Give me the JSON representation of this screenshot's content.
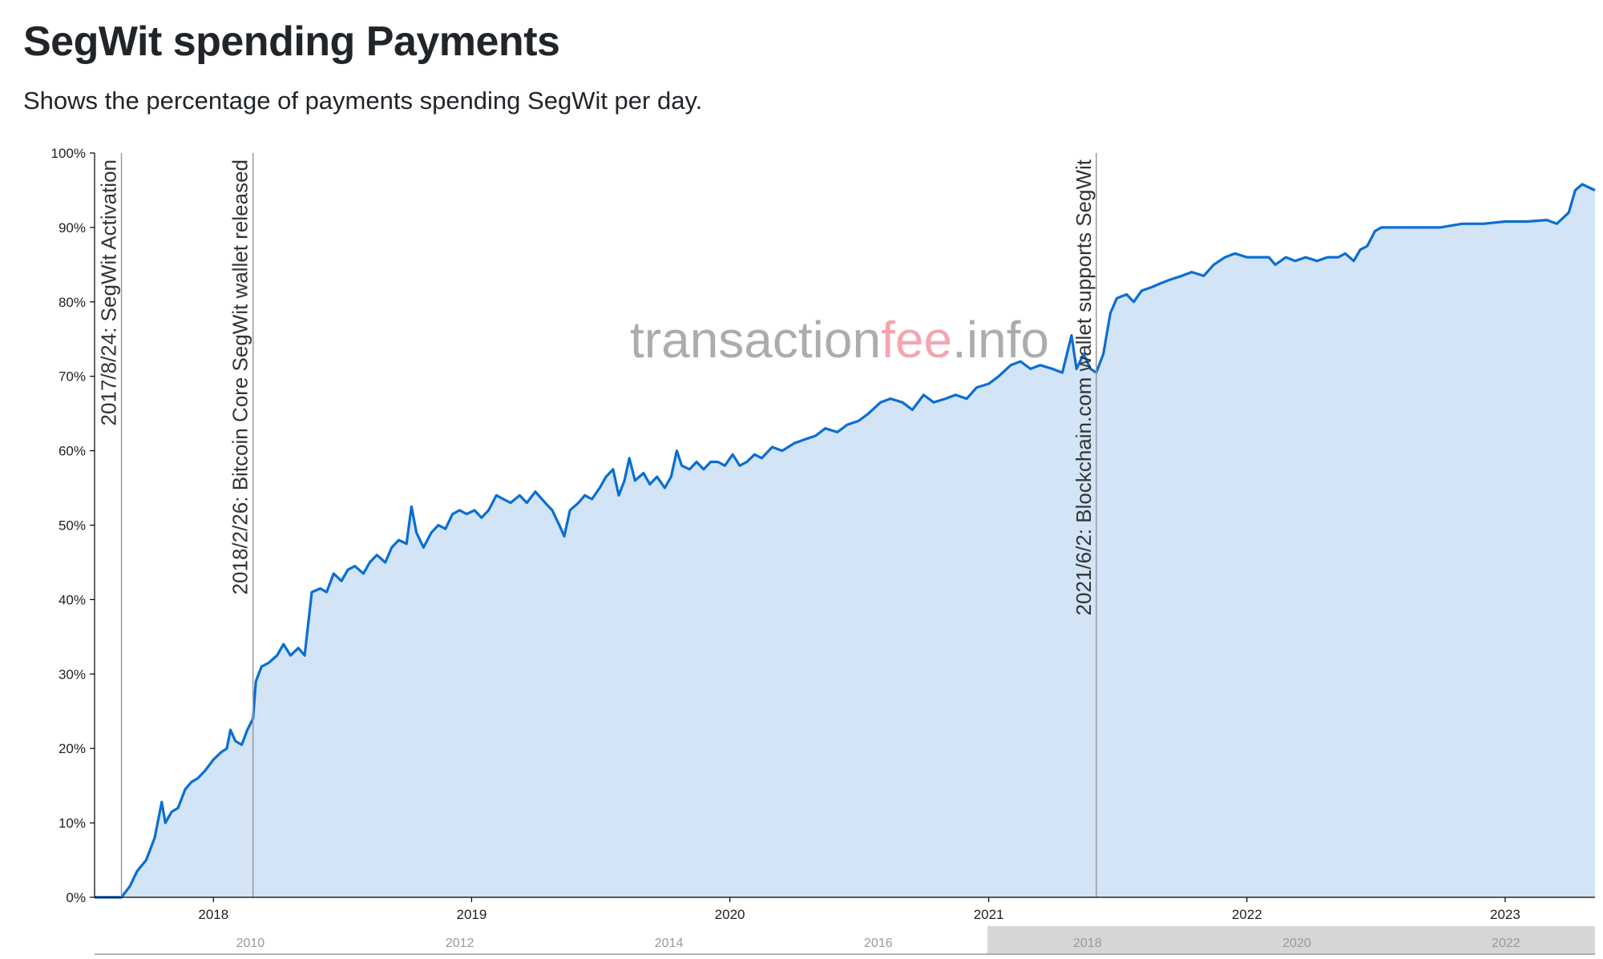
{
  "page": {
    "title": "SegWit spending Payments",
    "subtitle": "Shows the percentage of payments spending SegWit per day."
  },
  "watermark": {
    "part1": "transaction",
    "part2": "fee",
    "part3": ".info"
  },
  "colors": {
    "line": "#0a6ed1",
    "fill": "#d2e4f6",
    "annotation_line": "#9a9a9a",
    "navigator_window": "#d6d6d6"
  },
  "chart_data": {
    "type": "area",
    "title": "",
    "xlabel": "",
    "ylabel": "",
    "x_range": [
      "2017-07-17",
      "2023-05-08"
    ],
    "ylim": [
      0,
      100
    ],
    "y_ticks": [
      "0%",
      "10%",
      "20%",
      "30%",
      "40%",
      "50%",
      "60%",
      "70%",
      "80%",
      "90%",
      "100%"
    ],
    "x_ticks": [
      "2018",
      "2019",
      "2020",
      "2021",
      "2022",
      "2023"
    ],
    "grid": false,
    "legend": "none",
    "annotations": [
      {
        "date": "2017-08-24",
        "label": "2017/8/24: SegWit Activation"
      },
      {
        "date": "2018-02-26",
        "label": "2018/2/26: Bitcoin Core SegWit wallet released"
      },
      {
        "date": "2021-06-02",
        "label": "2021/6/2: Blockchain.com wallet supports SegWit"
      }
    ],
    "navigator": {
      "ticks": [
        "2010",
        "2012",
        "2014",
        "2016",
        "2018",
        "2020",
        "2022"
      ],
      "selected_range": [
        "2017-07-17",
        "2023-05-08"
      ]
    },
    "series": [
      {
        "values": [
          [
            "2017-07-17",
            0
          ],
          [
            "2017-08-24",
            0
          ],
          [
            "2017-09-05",
            1.5
          ],
          [
            "2017-09-15",
            3.5
          ],
          [
            "2017-09-28",
            5
          ],
          [
            "2017-10-10",
            8
          ],
          [
            "2017-10-20",
            12.8
          ],
          [
            "2017-10-25",
            10
          ],
          [
            "2017-11-03",
            11.5
          ],
          [
            "2017-11-12",
            12
          ],
          [
            "2017-11-22",
            14.5
          ],
          [
            "2017-12-01",
            15.5
          ],
          [
            "2017-12-10",
            16
          ],
          [
            "2017-12-20",
            17
          ],
          [
            "2018-01-01",
            18.5
          ],
          [
            "2018-01-12",
            19.5
          ],
          [
            "2018-01-20",
            20
          ],
          [
            "2018-01-25",
            22.5
          ],
          [
            "2018-02-01",
            21
          ],
          [
            "2018-02-10",
            20.5
          ],
          [
            "2018-02-18",
            22.5
          ],
          [
            "2018-02-26",
            24
          ],
          [
            "2018-03-02",
            29
          ],
          [
            "2018-03-10",
            31
          ],
          [
            "2018-03-20",
            31.5
          ],
          [
            "2018-04-01",
            32.5
          ],
          [
            "2018-04-10",
            34
          ],
          [
            "2018-04-20",
            32.5
          ],
          [
            "2018-05-01",
            33.5
          ],
          [
            "2018-05-10",
            32.5
          ],
          [
            "2018-05-20",
            41
          ],
          [
            "2018-06-01",
            41.5
          ],
          [
            "2018-06-10",
            41
          ],
          [
            "2018-06-20",
            43.5
          ],
          [
            "2018-07-01",
            42.5
          ],
          [
            "2018-07-10",
            44
          ],
          [
            "2018-07-20",
            44.5
          ],
          [
            "2018-08-01",
            43.5
          ],
          [
            "2018-08-10",
            45
          ],
          [
            "2018-08-20",
            46
          ],
          [
            "2018-09-01",
            45
          ],
          [
            "2018-09-10",
            47
          ],
          [
            "2018-09-20",
            48
          ],
          [
            "2018-10-01",
            47.5
          ],
          [
            "2018-10-08",
            52.5
          ],
          [
            "2018-10-15",
            49
          ],
          [
            "2018-10-25",
            47
          ],
          [
            "2018-11-05",
            49
          ],
          [
            "2018-11-15",
            50
          ],
          [
            "2018-11-25",
            49.5
          ],
          [
            "2018-12-05",
            51.5
          ],
          [
            "2018-12-15",
            52
          ],
          [
            "2018-12-25",
            51.5
          ],
          [
            "2019-01-05",
            52
          ],
          [
            "2019-01-15",
            51
          ],
          [
            "2019-01-25",
            52
          ],
          [
            "2019-02-05",
            54
          ],
          [
            "2019-02-15",
            53.5
          ],
          [
            "2019-02-25",
            53
          ],
          [
            "2019-03-10",
            54
          ],
          [
            "2019-03-20",
            53
          ],
          [
            "2019-04-01",
            54.5
          ],
          [
            "2019-04-15",
            53
          ],
          [
            "2019-04-25",
            52
          ],
          [
            "2019-05-05",
            50
          ],
          [
            "2019-05-12",
            48.5
          ],
          [
            "2019-05-20",
            52
          ],
          [
            "2019-06-01",
            53
          ],
          [
            "2019-06-10",
            54
          ],
          [
            "2019-06-20",
            53.5
          ],
          [
            "2019-07-01",
            55
          ],
          [
            "2019-07-10",
            56.5
          ],
          [
            "2019-07-20",
            57.5
          ],
          [
            "2019-07-28",
            54
          ],
          [
            "2019-08-05",
            56
          ],
          [
            "2019-08-12",
            59
          ],
          [
            "2019-08-20",
            56
          ],
          [
            "2019-09-01",
            57
          ],
          [
            "2019-09-10",
            55.5
          ],
          [
            "2019-09-20",
            56.5
          ],
          [
            "2019-10-01",
            55
          ],
          [
            "2019-10-10",
            56.5
          ],
          [
            "2019-10-18",
            60
          ],
          [
            "2019-10-25",
            58
          ],
          [
            "2019-11-05",
            57.5
          ],
          [
            "2019-11-15",
            58.5
          ],
          [
            "2019-11-25",
            57.5
          ],
          [
            "2019-12-05",
            58.5
          ],
          [
            "2019-12-15",
            58.5
          ],
          [
            "2019-12-25",
            58
          ],
          [
            "2020-01-05",
            59.5
          ],
          [
            "2020-01-15",
            58
          ],
          [
            "2020-01-25",
            58.5
          ],
          [
            "2020-02-05",
            59.5
          ],
          [
            "2020-02-15",
            59
          ],
          [
            "2020-03-01",
            60.5
          ],
          [
            "2020-03-15",
            60
          ],
          [
            "2020-04-01",
            61
          ],
          [
            "2020-04-15",
            61.5
          ],
          [
            "2020-05-01",
            62
          ],
          [
            "2020-05-15",
            63
          ],
          [
            "2020-06-01",
            62.5
          ],
          [
            "2020-06-15",
            63.5
          ],
          [
            "2020-07-01",
            64
          ],
          [
            "2020-07-15",
            65
          ],
          [
            "2020-08-01",
            66.5
          ],
          [
            "2020-08-15",
            67
          ],
          [
            "2020-09-01",
            66.5
          ],
          [
            "2020-09-15",
            65.5
          ],
          [
            "2020-10-01",
            67.5
          ],
          [
            "2020-10-15",
            66.5
          ],
          [
            "2020-11-01",
            67
          ],
          [
            "2020-11-15",
            67.5
          ],
          [
            "2020-12-01",
            67
          ],
          [
            "2020-12-15",
            68.5
          ],
          [
            "2021-01-01",
            69
          ],
          [
            "2021-01-15",
            70
          ],
          [
            "2021-02-01",
            71.5
          ],
          [
            "2021-02-15",
            72
          ],
          [
            "2021-03-01",
            71
          ],
          [
            "2021-03-15",
            71.5
          ],
          [
            "2021-04-01",
            71
          ],
          [
            "2021-04-15",
            70.5
          ],
          [
            "2021-04-28",
            75.5
          ],
          [
            "2021-05-05",
            71
          ],
          [
            "2021-05-15",
            73
          ],
          [
            "2021-05-25",
            71
          ],
          [
            "2021-06-02",
            70.5
          ],
          [
            "2021-06-12",
            73
          ],
          [
            "2021-06-22",
            78.5
          ],
          [
            "2021-07-01",
            80.5
          ],
          [
            "2021-07-15",
            81
          ],
          [
            "2021-07-25",
            80
          ],
          [
            "2021-08-05",
            81.5
          ],
          [
            "2021-08-20",
            82
          ],
          [
            "2021-09-01",
            82.5
          ],
          [
            "2021-09-15",
            83
          ],
          [
            "2021-10-01",
            83.5
          ],
          [
            "2021-10-15",
            84
          ],
          [
            "2021-11-01",
            83.5
          ],
          [
            "2021-11-15",
            85
          ],
          [
            "2021-12-01",
            86
          ],
          [
            "2021-12-15",
            86.5
          ],
          [
            "2022-01-01",
            86
          ],
          [
            "2022-01-15",
            86
          ],
          [
            "2022-02-01",
            86
          ],
          [
            "2022-02-10",
            85
          ],
          [
            "2022-02-25",
            86
          ],
          [
            "2022-03-10",
            85.5
          ],
          [
            "2022-03-25",
            86
          ],
          [
            "2022-04-10",
            85.5
          ],
          [
            "2022-04-25",
            86
          ],
          [
            "2022-05-10",
            86
          ],
          [
            "2022-05-20",
            86.5
          ],
          [
            "2022-06-01",
            85.5
          ],
          [
            "2022-06-10",
            87
          ],
          [
            "2022-06-20",
            87.5
          ],
          [
            "2022-07-01",
            89.5
          ],
          [
            "2022-07-10",
            90
          ],
          [
            "2022-08-01",
            90
          ],
          [
            "2022-09-01",
            90
          ],
          [
            "2022-10-01",
            90
          ],
          [
            "2022-11-01",
            90.5
          ],
          [
            "2022-12-01",
            90.5
          ],
          [
            "2023-01-01",
            90.8
          ],
          [
            "2023-02-01",
            90.8
          ],
          [
            "2023-03-01",
            91
          ],
          [
            "2023-03-15",
            90.5
          ],
          [
            "2023-04-01",
            92
          ],
          [
            "2023-04-10",
            95
          ],
          [
            "2023-04-20",
            95.8
          ],
          [
            "2023-05-08",
            95
          ]
        ]
      }
    ]
  }
}
